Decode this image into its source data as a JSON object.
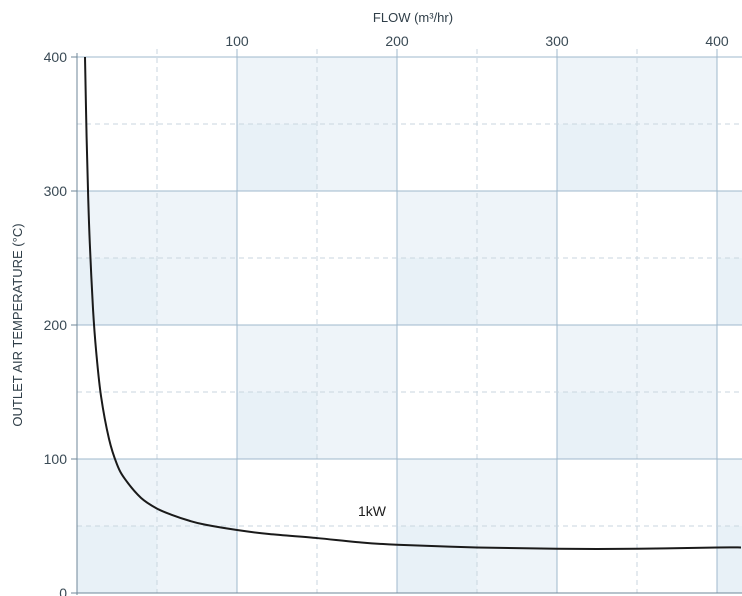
{
  "chart_data": {
    "type": "line",
    "title": "",
    "xlabel": "FLOW (m³/hr)",
    "ylabel": "OUTLET AIR TEMPERATURE (°C)",
    "xlim": [
      0,
      415
    ],
    "ylim": [
      0,
      400
    ],
    "x_ticks": [
      100,
      200,
      300,
      400
    ],
    "x_tick_labels": [
      "100",
      "200",
      "300",
      "400"
    ],
    "y_ticks": [
      0,
      100,
      200,
      300,
      400
    ],
    "y_tick_labels": [
      "0",
      "100",
      "200",
      "300",
      "400"
    ],
    "x_axis_position": "top",
    "grid": true,
    "series": [
      {
        "name": "1kW",
        "color": "#1a1a1a",
        "x": [
          5,
          6,
          7,
          8,
          10,
          12,
          15,
          20,
          25,
          30,
          40,
          50,
          60,
          70,
          80,
          100,
          120,
          150,
          175,
          200,
          250,
          300,
          350,
          400,
          415
        ],
        "y": [
          400,
          340,
          295,
          261,
          212,
          180,
          147,
          115,
          96,
          85,
          71,
          63,
          58,
          54,
          51,
          47,
          44,
          41,
          38,
          36,
          34,
          33,
          33,
          34,
          34
        ]
      }
    ]
  },
  "style": {
    "background": "#ffffff",
    "band_fill": "#eef4f9",
    "band_fill_dark": "#e3eef6",
    "grid_major": "#9fb8cc",
    "grid_minor": "#c9d6df",
    "line_color": "#1a1a1a"
  }
}
